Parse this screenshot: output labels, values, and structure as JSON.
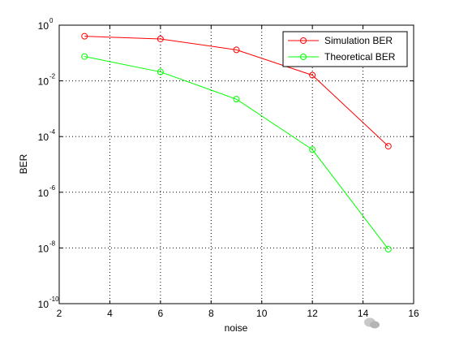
{
  "chart_data": {
    "type": "line",
    "yscale": "log",
    "xlabel": "noise",
    "ylabel": "BER",
    "xlim": [
      2,
      16
    ],
    "ylim": [
      1e-10,
      1
    ],
    "x_ticks": [
      2,
      4,
      6,
      8,
      10,
      12,
      14,
      16
    ],
    "y_tick_exponents": [
      0,
      -2,
      -4,
      -6,
      -8,
      -10
    ],
    "y_tick_base": "10",
    "grid": true,
    "legend_position": "top-right",
    "x": [
      3,
      6,
      9,
      12,
      15
    ],
    "series": [
      {
        "name": "Simulation BER",
        "color": "#ff0000",
        "marker": "circle",
        "values": [
          0.4,
          0.32,
          0.13,
          0.016,
          4.5e-05
        ]
      },
      {
        "name": "Theoretical BER",
        "color": "#00ff00",
        "marker": "circle",
        "values": [
          0.075,
          0.021,
          0.0022,
          3.4e-05,
          9e-09
        ]
      }
    ]
  }
}
